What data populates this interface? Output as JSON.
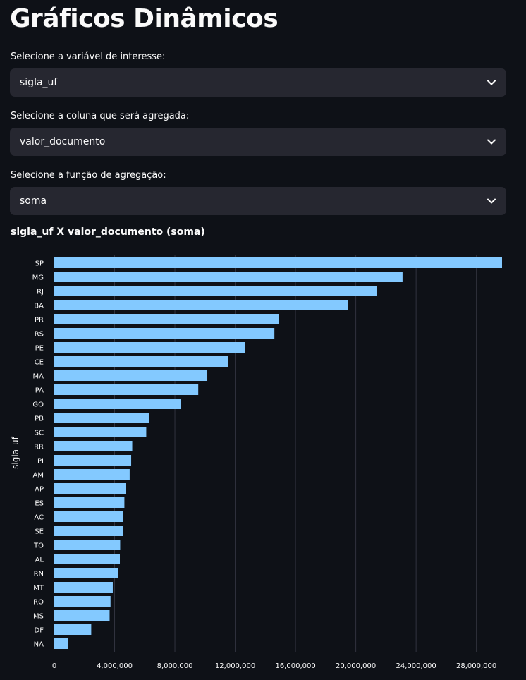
{
  "page": {
    "title": "Gráficos Dinâmicos"
  },
  "controls": [
    {
      "label": "Selecione a variável de interesse:",
      "value": "sigla_uf"
    },
    {
      "label": "Selecione a coluna que será agregada:",
      "value": "valor_documento"
    },
    {
      "label": "Selecione a função de agregação:",
      "value": "soma"
    }
  ],
  "icons": {
    "select_chevron": "chevron-down-icon"
  },
  "colors": {
    "background": "#0e1117",
    "select_background": "#262730",
    "bar_fill": "#83c9ff",
    "grid": "#31333f"
  },
  "chart_data": {
    "type": "bar",
    "orientation": "horizontal",
    "title": "sigla_uf X valor_documento (soma)",
    "ylabel": "sigla_uf",
    "xlabel": "",
    "categories": [
      "SP",
      "MG",
      "RJ",
      "BA",
      "PR",
      "RS",
      "PE",
      "CE",
      "MA",
      "PA",
      "GO",
      "PB",
      "SC",
      "RR",
      "PI",
      "AM",
      "AP",
      "ES",
      "AC",
      "SE",
      "TO",
      "AL",
      "RN",
      "MT",
      "RO",
      "MS",
      "DF",
      "NA"
    ],
    "values": [
      29700000,
      23100000,
      21400000,
      19500000,
      14900000,
      14600000,
      12650000,
      11550000,
      10150000,
      9550000,
      8400000,
      6270000,
      6100000,
      5170000,
      5100000,
      5000000,
      4750000,
      4650000,
      4580000,
      4550000,
      4370000,
      4350000,
      4230000,
      3880000,
      3730000,
      3670000,
      2450000,
      920000
    ],
    "xlim": [
      0,
      29700000
    ],
    "xticks": [
      0,
      4000000,
      8000000,
      12000000,
      16000000,
      20000000,
      24000000,
      28000000
    ],
    "xtick_labels": [
      "0",
      "4,000,000",
      "8,000,000",
      "12,000,000",
      "16,000,000",
      "20,000,000",
      "24,000,000",
      "28,000,000"
    ],
    "grid": "vertical"
  }
}
